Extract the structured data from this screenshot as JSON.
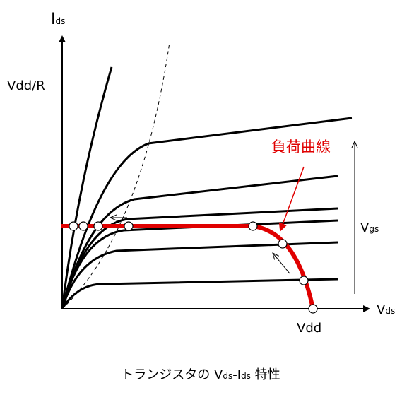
{
  "labels": {
    "y_axis": {
      "main": "I",
      "sub": "ds"
    },
    "vdd_r": "Vdd/R",
    "load_line": "負荷曲線",
    "vgs": {
      "main": "V",
      "sub": "gs"
    },
    "x_axis": {
      "main": "V",
      "sub": "ds"
    },
    "vdd": "Vdd"
  },
  "caption": {
    "prefix": "トランジスタの ",
    "v": "V",
    "v_sub": "ds",
    "dash": "-",
    "i": "I",
    "i_sub": "ds",
    "suffix": " 特性"
  }
}
